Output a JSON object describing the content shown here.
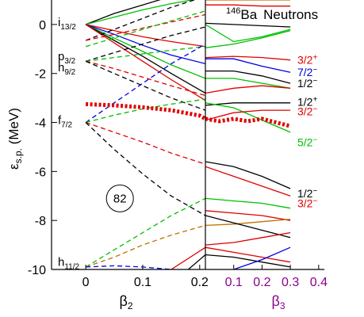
{
  "chart_data": {
    "type": "line",
    "title": "146Ba  Neutrons",
    "title_parts": {
      "mass": "146",
      "element": "Ba",
      "particle": "Neutrons"
    },
    "ylabel": "ε",
    "ylabel_sub": "s.p.",
    "ylabel_unit": " (MeV)",
    "ylim": [
      -10,
      1
    ],
    "yticks": [
      0,
      -2,
      -4,
      -6,
      -8,
      -10
    ],
    "panels": [
      {
        "id": "beta2",
        "xlabel": "β",
        "xlabel_sub": "2",
        "xlim": [
          -0.06,
          0.21
        ],
        "xticks": [
          0,
          0.1,
          0.2
        ],
        "xtick_labels": [
          "0",
          "0.1",
          "0.2"
        ],
        "label_color": "#000000"
      },
      {
        "id": "beta3",
        "xlabel": "β",
        "xlabel_sub": "3",
        "xlim": [
          0,
          0.45
        ],
        "xticks": [
          0.1,
          0.2,
          0.3,
          0.4
        ],
        "xtick_labels": [
          "0.1",
          "0.2",
          "0.3",
          "0.4"
        ],
        "label_color": "#8b008b"
      }
    ],
    "spherical_labels": [
      {
        "orbital": "i",
        "sub": "13/2",
        "y": 0.1
      },
      {
        "orbital": "p",
        "sub": "3/2",
        "y": -1.3
      },
      {
        "orbital": "h",
        "sub": "9/2",
        "y": -1.75
      },
      {
        "orbital": "f",
        "sub": "7/2",
        "y": -3.9
      },
      {
        "orbital": "h",
        "sub": "11/2",
        "y": -9.7
      }
    ],
    "magic_number": "82",
    "magic_number_pos": {
      "x": 0.06,
      "y": -7.1
    },
    "fermi_level": {
      "beta2": {
        "x": [
          0.0,
          0.05,
          0.1,
          0.15,
          0.2,
          0.21
        ],
        "y": [
          -3.25,
          -3.3,
          -3.38,
          -3.5,
          -3.72,
          -3.85
        ]
      },
      "beta3": {
        "x": [
          0,
          0.05,
          0.1,
          0.15,
          0.2,
          0.25,
          0.3
        ],
        "y": [
          -3.85,
          -3.95,
          -3.85,
          -3.95,
          -3.85,
          -4.0,
          -4.15
        ]
      }
    },
    "level_labels": [
      {
        "text": "3/2",
        "sign": "+",
        "y": -1.45,
        "color": "#e00000"
      },
      {
        "text": "7/2",
        "sign": "−",
        "y": -1.95,
        "color": "#0000e0"
      },
      {
        "text": "1/2",
        "sign": "−",
        "y": -2.4,
        "color": "#000000"
      },
      {
        "text": "1/2",
        "sign": "+",
        "y": -3.15,
        "color": "#000000"
      },
      {
        "text": "3/2",
        "sign": "−",
        "y": -3.55,
        "color": "#e00000"
      },
      {
        "text": "5/2",
        "sign": "−",
        "y": -4.8,
        "color": "#00c000"
      },
      {
        "text": "1/2",
        "sign": "−",
        "y": -6.9,
        "color": "#000000"
      },
      {
        "text": "3/2",
        "sign": "−",
        "y": -7.3,
        "color": "#e00000"
      }
    ],
    "beta2_series": [
      {
        "color": "#000000",
        "dash": false,
        "x": [
          0,
          0.05,
          0.1,
          0.15,
          0.21
        ],
        "y": [
          0,
          0.45,
          0.8,
          1.15,
          1.5
        ]
      },
      {
        "color": "#00c000",
        "dash": false,
        "x": [
          0,
          0.05,
          0.1,
          0.15,
          0.21
        ],
        "y": [
          0,
          0.3,
          0.6,
          0.85,
          1.1
        ]
      },
      {
        "color": "#e00000",
        "dash": false,
        "x": [
          0,
          0.05,
          0.1,
          0.15,
          0.21
        ],
        "y": [
          0,
          -0.25,
          -0.5,
          -0.7,
          -0.9
        ]
      },
      {
        "color": "#0000e0",
        "dash": false,
        "x": [
          0,
          0.05,
          0.1,
          0.15,
          0.21
        ],
        "y": [
          0,
          -0.4,
          -0.85,
          -1.25,
          -1.6
        ]
      },
      {
        "color": "#00c000",
        "dash": false,
        "x": [
          0,
          0.05,
          0.1,
          0.15,
          0.21
        ],
        "y": [
          0,
          -0.55,
          -1.1,
          -1.65,
          -2.2
        ]
      },
      {
        "color": "#000000",
        "dash": false,
        "x": [
          0,
          0.05,
          0.1,
          0.15,
          0.21
        ],
        "y": [
          0,
          -0.65,
          -1.3,
          -2.0,
          -2.8
        ]
      },
      {
        "color": "#e00000",
        "dash": false,
        "x": [
          0,
          0.05,
          0.1,
          0.15,
          0.21
        ],
        "y": [
          0,
          -0.75,
          -1.5,
          -2.25,
          -3.1
        ]
      },
      {
        "color": "#000000",
        "dash": true,
        "x": [
          0,
          0.05,
          0.1,
          0.15,
          0.21
        ],
        "y": [
          -0.65,
          -0.2,
          0.25,
          0.7,
          1.15
        ]
      },
      {
        "color": "#e00000",
        "dash": true,
        "x": [
          0,
          0.05,
          0.1,
          0.15,
          0.21
        ],
        "y": [
          -0.65,
          -0.4,
          -0.15,
          0.1,
          0.4
        ]
      },
      {
        "color": "#00c000",
        "dash": true,
        "x": [
          0,
          0.05,
          0.1,
          0.15,
          0.21
        ],
        "y": [
          -0.9,
          -0.55,
          -0.2,
          0.15,
          0.55
        ]
      },
      {
        "color": "#000000",
        "dash": true,
        "x": [
          0,
          0.05,
          0.1,
          0.15,
          0.21
        ],
        "y": [
          -1.5,
          -1.15,
          -0.8,
          -0.45,
          -0.1
        ]
      },
      {
        "color": "#00c000",
        "dash": true,
        "x": [
          0,
          0.05,
          0.1,
          0.15,
          0.21
        ],
        "y": [
          -1.5,
          -1.35,
          -1.2,
          -1.05,
          -0.9
        ]
      },
      {
        "color": "#e00000",
        "dash": true,
        "x": [
          0,
          0.05,
          0.1,
          0.15,
          0.21
        ],
        "y": [
          -1.5,
          -1.8,
          -2.15,
          -2.5,
          -2.9
        ]
      },
      {
        "color": "#000000",
        "dash": true,
        "x": [
          0,
          0.05,
          0.1,
          0.15,
          0.21
        ],
        "y": [
          -1.5,
          -2.0,
          -2.5,
          -3.0,
          -3.5
        ]
      },
      {
        "color": "#0000e0",
        "dash": true,
        "x": [
          0,
          0.05,
          0.1,
          0.15,
          0.21
        ],
        "y": [
          -4.0,
          -3.2,
          -2.4,
          -1.6,
          -0.8
        ]
      },
      {
        "color": "#00c000",
        "dash": true,
        "x": [
          0,
          0.05,
          0.1,
          0.15,
          0.21
        ],
        "y": [
          -4.0,
          -3.7,
          -3.45,
          -3.25,
          -3.05
        ]
      },
      {
        "color": "#e00000",
        "dash": true,
        "x": [
          0,
          0.05,
          0.1,
          0.15,
          0.21
        ],
        "y": [
          -4.0,
          -4.4,
          -4.8,
          -5.25,
          -5.7
        ]
      },
      {
        "color": "#000000",
        "dash": true,
        "x": [
          0,
          0.05,
          0.1,
          0.15,
          0.21
        ],
        "y": [
          -4.0,
          -5.1,
          -6.1,
          -7.0,
          -7.8
        ]
      },
      {
        "color": "#00c000",
        "dash": true,
        "x": [
          0,
          0.05,
          0.1,
          0.15,
          0.21
        ],
        "y": [
          -9.9,
          -9.2,
          -8.5,
          -7.8,
          -7.1
        ]
      },
      {
        "color": "#c07000",
        "dash": true,
        "x": [
          0,
          0.05,
          0.1,
          0.15,
          0.21
        ],
        "y": [
          -9.9,
          -9.5,
          -9.0,
          -8.6,
          -8.2
        ]
      },
      {
        "color": "#0000e0",
        "dash": true,
        "x": [
          0,
          0.05,
          0.1,
          0.15,
          0.21
        ],
        "y": [
          -9.9,
          -9.85,
          -9.9,
          -10.0,
          -10.1
        ]
      },
      {
        "color": "#e00000",
        "dash": false,
        "x": [
          0.15,
          0.21
        ],
        "y": [
          -10.0,
          -9.1
        ]
      },
      {
        "color": "#000000",
        "dash": false,
        "x": [
          0.18,
          0.21
        ],
        "y": [
          -10.0,
          -9.4
        ]
      }
    ],
    "beta3_series": [
      {
        "color": "#c07000",
        "dash": false,
        "x": [
          0,
          0.1,
          0.2,
          0.3
        ],
        "y": [
          1.0,
          1.0,
          1.0,
          1.0
        ]
      },
      {
        "color": "#e00000",
        "dash": false,
        "x": [
          0,
          0.1,
          0.2,
          0.3
        ],
        "y": [
          0.8,
          0.8,
          0.75,
          0.75
        ]
      },
      {
        "color": "#000000",
        "dash": false,
        "x": [
          0,
          0.1,
          0.2,
          0.3
        ],
        "y": [
          0.05,
          0.0,
          -0.05,
          -0.1
        ]
      },
      {
        "color": "#00c000",
        "dash": false,
        "x": [
          0,
          0.1,
          0.2,
          0.3
        ],
        "y": [
          0.0,
          -0.7,
          -0.5,
          -0.2
        ]
      },
      {
        "color": "#00c000",
        "dash": false,
        "x": [
          0,
          0.1,
          0.2,
          0.3
        ],
        "y": [
          -0.95,
          -0.8,
          -0.55,
          -0.25
        ]
      },
      {
        "color": "#0000e0",
        "dash": false,
        "x": [
          0,
          0.1,
          0.2,
          0.3
        ],
        "y": [
          -1.4,
          -1.4,
          -1.7,
          -1.95
        ]
      },
      {
        "color": "#e00000",
        "dash": false,
        "x": [
          0,
          0.1,
          0.2,
          0.3
        ],
        "y": [
          -1.35,
          -1.3,
          -1.35,
          -1.45
        ]
      },
      {
        "color": "#000000",
        "dash": false,
        "x": [
          0,
          0.1,
          0.2,
          0.3
        ],
        "y": [
          -1.9,
          -1.9,
          -2.1,
          -2.4
        ]
      },
      {
        "color": "#00c000",
        "dash": false,
        "x": [
          0,
          0.1,
          0.2,
          0.3
        ],
        "y": [
          -2.2,
          -2.2,
          -2.4,
          -2.6
        ]
      },
      {
        "color": "#e00000",
        "dash": false,
        "x": [
          0,
          0.1,
          0.2,
          0.3
        ],
        "y": [
          -2.8,
          -2.6,
          -2.5,
          -2.6
        ]
      },
      {
        "color": "#000000",
        "dash": false,
        "x": [
          0,
          0.1,
          0.2,
          0.3
        ],
        "y": [
          -3.3,
          -3.2,
          -3.2,
          -3.2
        ]
      },
      {
        "color": "#00c000",
        "dash": false,
        "x": [
          0,
          0.1,
          0.2,
          0.3
        ],
        "y": [
          -3.2,
          -3.4,
          -3.9,
          -4.4
        ]
      },
      {
        "color": "#e00000",
        "dash": false,
        "x": [
          0,
          0.1,
          0.2,
          0.3
        ],
        "y": [
          -3.9,
          -3.6,
          -3.5,
          -3.5
        ]
      },
      {
        "color": "#000000",
        "dash": false,
        "x": [
          0,
          0.1,
          0.2,
          0.3
        ],
        "y": [
          -5.6,
          -5.8,
          -6.2,
          -6.7
        ]
      },
      {
        "color": "#e00000",
        "dash": false,
        "x": [
          0,
          0.1,
          0.2,
          0.3
        ],
        "y": [
          -5.8,
          -6.2,
          -6.6,
          -7.0
        ]
      },
      {
        "color": "#00c000",
        "dash": false,
        "x": [
          0,
          0.1,
          0.2,
          0.3
        ],
        "y": [
          -7.1,
          -7.2,
          -7.3,
          -7.5
        ]
      },
      {
        "color": "#e00000",
        "dash": false,
        "x": [
          0,
          0.1,
          0.2,
          0.3
        ],
        "y": [
          -7.6,
          -7.7,
          -7.8,
          -8.0
        ]
      },
      {
        "color": "#c07000",
        "dash": false,
        "x": [
          0,
          0.1,
          0.2,
          0.3
        ],
        "y": [
          -8.2,
          -8.15,
          -8.05,
          -7.95
        ]
      },
      {
        "color": "#000000",
        "dash": false,
        "x": [
          0,
          0.1,
          0.2,
          0.3
        ],
        "y": [
          -7.8,
          -8.1,
          -8.4,
          -8.7
        ]
      },
      {
        "color": "#e00000",
        "dash": false,
        "x": [
          0,
          0.1,
          0.2,
          0.3
        ],
        "y": [
          -9.0,
          -8.9,
          -8.7,
          -8.5
        ]
      },
      {
        "color": "#e00000",
        "dash": false,
        "x": [
          0,
          0.1,
          0.2,
          0.3
        ],
        "y": [
          -9.1,
          -9.3,
          -9.5,
          -9.7
        ]
      },
      {
        "color": "#000000",
        "dash": false,
        "x": [
          0,
          0.1,
          0.2,
          0.3
        ],
        "y": [
          -9.4,
          -9.5,
          -9.7,
          -9.9
        ]
      },
      {
        "color": "#0000e0",
        "dash": false,
        "x": [
          0.1,
          0.2,
          0.3
        ],
        "y": [
          -10.0,
          -9.6,
          -9.1
        ]
      }
    ]
  }
}
